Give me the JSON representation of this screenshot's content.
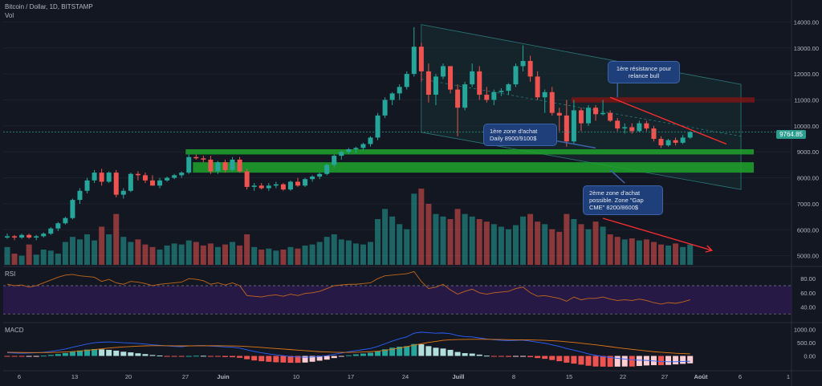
{
  "header": {
    "title": "Bitcoin / Dollar, 1D, BITSTAMP",
    "volume_label": "Vol"
  },
  "panes": {
    "rsi_label": "RSI",
    "macd_label": "MACD"
  },
  "annotations": {
    "resistance": "1ère résistance pour relance bull",
    "zone1": "1ère zone d'achat Daily 8900/9100$",
    "zone2": "2ème zone d'achat possible. Zone \"Gap CME\" 8200/8600$"
  },
  "last_price": "9764.85",
  "colors": {
    "background": "#131722",
    "up": "#26a69a",
    "down": "#ef5350",
    "zone_green": "#1fa32b",
    "resistance_red": "#7a1515",
    "rsi_line": "#c1671b",
    "rsi_band": "#2a1a4a",
    "macd_line": "#2962ff",
    "signal_line": "#e6780f",
    "callout": "#1e3f7a"
  },
  "chart_data": [
    {
      "type": "candlestick",
      "title": "Bitcoin / Dollar, 1D, BITSTAMP",
      "y_axis": {
        "ticks": [
          5000,
          6000,
          7000,
          8000,
          9000,
          10000,
          11000,
          12000,
          13000,
          14000
        ],
        "tick_labels": [
          "5000.00",
          "6000.00",
          "7000.00",
          "8000.00",
          "9000.00",
          "10000.00",
          "11000.00",
          "12000.00",
          "13000.00",
          "14000.00"
        ],
        "range": [
          4650,
          14600
        ]
      },
      "x_axis": {
        "tick_labels": [
          "6",
          "13",
          "20",
          "27",
          "Juin",
          "10",
          "17",
          "24",
          "Juill",
          "8",
          "15",
          "22",
          "27",
          "Août",
          "6",
          "1"
        ]
      },
      "zones": [
        {
          "name": "zone1",
          "low": 8900,
          "high": 9100
        },
        {
          "name": "zone2",
          "low": 8200,
          "high": 8600
        },
        {
          "name": "resistance",
          "low": 10900,
          "high": 11100
        }
      ],
      "candles": [
        [
          5700,
          5850,
          5650,
          5750
        ],
        [
          5750,
          5800,
          5600,
          5700
        ],
        [
          5700,
          5850,
          5650,
          5800
        ],
        [
          5800,
          5850,
          5650,
          5700
        ],
        [
          5700,
          5800,
          5600,
          5750
        ],
        [
          5750,
          5900,
          5700,
          5850
        ],
        [
          5850,
          6100,
          5800,
          6050
        ],
        [
          6050,
          6300,
          5950,
          6250
        ],
        [
          6250,
          6500,
          6200,
          6450
        ],
        [
          6450,
          7200,
          6400,
          7150
        ],
        [
          7150,
          7600,
          7000,
          7500
        ],
        [
          7500,
          8000,
          7400,
          7900
        ],
        [
          7900,
          8300,
          7800,
          8200
        ],
        [
          8200,
          8350,
          7700,
          7850
        ],
        [
          7850,
          8250,
          7800,
          8200
        ],
        [
          8200,
          8300,
          7250,
          7350
        ],
        [
          7350,
          7600,
          7200,
          7500
        ],
        [
          7500,
          8200,
          7450,
          8150
        ],
        [
          8150,
          8250,
          7900,
          8100
        ],
        [
          8100,
          8200,
          7800,
          7900
        ],
        [
          7900,
          8100,
          7700,
          7700
        ],
        [
          7700,
          8000,
          7600,
          7900
        ],
        [
          7900,
          8050,
          7850,
          8000
        ],
        [
          8000,
          8150,
          7950,
          8100
        ],
        [
          8100,
          8250,
          8000,
          8200
        ],
        [
          8200,
          8900,
          8150,
          8800
        ],
        [
          8800,
          8900,
          8700,
          8750
        ],
        [
          8750,
          8850,
          8600,
          8700
        ],
        [
          8700,
          8850,
          8150,
          8250
        ],
        [
          8250,
          8650,
          8150,
          8600
        ],
        [
          8600,
          8700,
          8200,
          8300
        ],
        [
          8300,
          8800,
          8250,
          8700
        ],
        [
          8700,
          8800,
          8200,
          8250
        ],
        [
          8250,
          8350,
          7550,
          7650
        ],
        [
          7650,
          7800,
          7500,
          7700
        ],
        [
          7700,
          7800,
          7550,
          7600
        ],
        [
          7600,
          7800,
          7500,
          7700
        ],
        [
          7700,
          7850,
          7600,
          7750
        ],
        [
          7750,
          7800,
          7500,
          7550
        ],
        [
          7550,
          7900,
          7500,
          7850
        ],
        [
          7850,
          8000,
          7650,
          7700
        ],
        [
          7700,
          8000,
          7650,
          7950
        ],
        [
          7950,
          8100,
          7850,
          8050
        ],
        [
          8050,
          8200,
          7950,
          8150
        ],
        [
          8150,
          8550,
          8100,
          8500
        ],
        [
          8500,
          8900,
          8400,
          8850
        ],
        [
          8850,
          9050,
          8700,
          9000
        ],
        [
          9000,
          9150,
          8900,
          9100
        ],
        [
          9100,
          9200,
          8950,
          9150
        ],
        [
          9150,
          9350,
          9050,
          9300
        ],
        [
          9300,
          9600,
          9200,
          9550
        ],
        [
          9550,
          10500,
          9450,
          10400
        ],
        [
          10400,
          11100,
          10300,
          11000
        ],
        [
          11000,
          11300,
          10800,
          11250
        ],
        [
          11250,
          11600,
          11000,
          11500
        ],
        [
          11500,
          12100,
          11400,
          12000
        ],
        [
          12000,
          13800,
          11900,
          13050
        ],
        [
          13050,
          13200,
          11700,
          12100
        ],
        [
          12100,
          12400,
          10900,
          11200
        ],
        [
          11200,
          12000,
          10800,
          11900
        ],
        [
          11900,
          12400,
          11800,
          12300
        ],
        [
          12300,
          12300,
          11250,
          11400
        ],
        [
          11400,
          11600,
          9600,
          10700
        ],
        [
          10700,
          11700,
          10600,
          11600
        ],
        [
          11600,
          12400,
          11500,
          12100
        ],
        [
          12100,
          12300,
          11000,
          11200
        ],
        [
          11200,
          11500,
          10900,
          11000
        ],
        [
          11000,
          11400,
          10800,
          11300
        ],
        [
          11300,
          11450,
          11150,
          11350
        ],
        [
          11350,
          11650,
          11200,
          11600
        ],
        [
          11600,
          12400,
          11500,
          12300
        ],
        [
          12300,
          13100,
          12100,
          12500
        ],
        [
          12500,
          12700,
          11700,
          11900
        ],
        [
          11900,
          12100,
          11000,
          11100
        ],
        [
          11100,
          11400,
          10500,
          11300
        ],
        [
          11300,
          11500,
          10400,
          10500
        ],
        [
          10500,
          10700,
          9800,
          10400
        ],
        [
          10400,
          11000,
          9200,
          9400
        ],
        [
          9400,
          11000,
          9300,
          10600
        ],
        [
          10600,
          10700,
          9800,
          10100
        ],
        [
          10100,
          10800,
          10000,
          10700
        ],
        [
          10700,
          10800,
          10200,
          10450
        ],
        [
          10450,
          11000,
          10400,
          10500
        ],
        [
          10500,
          10600,
          10150,
          10200
        ],
        [
          10200,
          10300,
          9800,
          9900
        ],
        [
          9900,
          10100,
          9700,
          9950
        ],
        [
          9950,
          10100,
          9700,
          9800
        ],
        [
          9800,
          10200,
          9750,
          10100
        ],
        [
          10100,
          10200,
          9800,
          9900
        ],
        [
          9900,
          10000,
          9400,
          9500
        ],
        [
          9500,
          9600,
          9150,
          9250
        ],
        [
          9250,
          9500,
          9200,
          9450
        ],
        [
          9450,
          9550,
          9250,
          9350
        ],
        [
          9350,
          9650,
          9300,
          9550
        ],
        [
          9550,
          9800,
          9500,
          9760
        ]
      ],
      "volume": [
        35,
        22,
        18,
        40,
        20,
        30,
        28,
        22,
        45,
        55,
        50,
        60,
        48,
        75,
        60,
        100,
        55,
        45,
        50,
        40,
        35,
        30,
        38,
        42,
        40,
        48,
        45,
        38,
        42,
        35,
        40,
        45,
        38,
        60,
        35,
        30,
        32,
        28,
        30,
        35,
        32,
        38,
        40,
        45,
        55,
        60,
        50,
        48,
        42,
        40,
        45,
        90,
        110,
        95,
        80,
        70,
        140,
        150,
        120,
        100,
        95,
        90,
        110,
        100,
        95,
        90,
        85,
        80,
        75,
        70,
        78,
        95,
        100,
        85,
        80,
        70,
        65,
        100,
        90,
        80,
        70,
        85,
        75,
        60,
        55,
        50,
        52,
        48,
        50,
        45,
        40,
        38,
        42,
        35,
        40
      ],
      "rsi": {
        "levels": [
          30,
          70
        ],
        "tick_labels": [
          "40.00",
          "60.00",
          "80.00"
        ],
        "values": [
          72,
          70,
          71,
          68,
          70,
          74,
          78,
          82,
          85,
          86,
          84,
          83,
          82,
          76,
          79,
          74,
          72,
          76,
          75,
          73,
          70,
          72,
          73,
          74,
          75,
          80,
          79,
          77,
          72,
          74,
          71,
          74,
          70,
          56,
          55,
          54,
          56,
          57,
          55,
          58,
          56,
          59,
          60,
          62,
          66,
          70,
          71,
          72,
          72,
          73,
          74,
          80,
          84,
          85,
          86,
          87,
          90,
          76,
          66,
          68,
          72,
          64,
          58,
          62,
          65,
          60,
          58,
          60,
          61,
          62,
          66,
          68,
          60,
          55,
          56,
          54,
          52,
          48,
          54,
          50,
          52,
          52,
          54,
          51,
          49,
          50,
          49,
          51,
          49,
          46,
          44,
          46,
          45,
          47,
          50
        ]
      },
      "macd": {
        "tick_labels": [
          "0.00",
          "500.00",
          "1000.00"
        ],
        "macd_line": [
          120,
          110,
          100,
          110,
          120,
          140,
          170,
          210,
          260,
          330,
          390,
          450,
          500,
          520,
          530,
          520,
          500,
          490,
          470,
          450,
          420,
          400,
          380,
          360,
          350,
          380,
          390,
          390,
          370,
          360,
          340,
          330,
          300,
          230,
          170,
          120,
          80,
          40,
          10,
          -20,
          -40,
          -50,
          -40,
          -20,
          10,
          60,
          110,
          160,
          200,
          240,
          280,
          360,
          460,
          560,
          650,
          720,
          860,
          900,
          880,
          860,
          870,
          840,
          770,
          730,
          720,
          680,
          640,
          610,
          590,
          580,
          590,
          600,
          560,
          520,
          480,
          420,
          360,
          280,
          220,
          150,
          80,
          20,
          -20,
          -60,
          -90,
          -120,
          -150,
          -160,
          -170,
          -190,
          -210,
          -220,
          -220,
          -210,
          -200
        ],
        "signal_line": [
          140,
          135,
          130,
          128,
          127,
          128,
          132,
          140,
          150,
          165,
          185,
          210,
          240,
          270,
          300,
          320,
          340,
          355,
          370,
          380,
          385,
          385,
          385,
          383,
          380,
          380,
          382,
          384,
          385,
          384,
          382,
          378,
          370,
          355,
          340,
          320,
          300,
          280,
          260,
          240,
          220,
          200,
          180,
          160,
          150,
          140,
          135,
          135,
          140,
          150,
          160,
          180,
          210,
          250,
          300,
          350,
          410,
          460,
          510,
          550,
          590,
          610,
          620,
          625,
          630,
          630,
          630,
          625,
          620,
          615,
          610,
          610,
          605,
          600,
          590,
          575,
          560,
          535,
          510,
          480,
          450,
          420,
          385,
          350,
          315,
          280,
          250,
          220,
          190,
          160,
          140,
          120,
          100,
          90,
          80
        ],
        "histogram": [
          -20,
          -25,
          -30,
          -18,
          -7,
          12,
          38,
          70,
          110,
          165,
          205,
          240,
          260,
          250,
          230,
          200,
          160,
          135,
          100,
          70,
          35,
          15,
          -5,
          -23,
          -30,
          0,
          8,
          6,
          -15,
          -24,
          -42,
          -48,
          -70,
          -125,
          -170,
          -200,
          -220,
          -240,
          -250,
          -260,
          -260,
          -250,
          -220,
          -180,
          -140,
          -80,
          -25,
          25,
          60,
          90,
          120,
          180,
          250,
          310,
          350,
          370,
          450,
          440,
          370,
          310,
          280,
          230,
          150,
          105,
          90,
          50,
          10,
          -15,
          -30,
          -35,
          -20,
          -10,
          -45,
          -80,
          -110,
          -155,
          -200,
          -255,
          -290,
          -330,
          -370,
          -400,
          -405,
          -410,
          -405,
          -400,
          -400,
          -380,
          -360,
          -350,
          -350,
          -340,
          -320,
          -300,
          -280
        ]
      }
    }
  ]
}
